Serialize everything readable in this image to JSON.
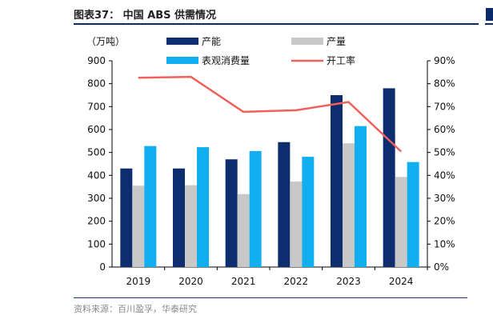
{
  "figure": {
    "title": "图表37： 中国 ABS 供需情况",
    "source": "资料来源：百川盈孚，华泰研究"
  },
  "chart_data": {
    "type": "bar",
    "categories": [
      "2019",
      "2020",
      "2021",
      "2022",
      "2023",
      "2024"
    ],
    "unit_label": "（万吨）",
    "y_left": {
      "min": 0,
      "max": 900,
      "step": 100,
      "ticks": [
        "0",
        "100",
        "200",
        "300",
        "400",
        "500",
        "600",
        "700",
        "800",
        "900"
      ]
    },
    "y_right": {
      "min": 0,
      "max": 90,
      "step": 10,
      "ticks": [
        "0%",
        "10%",
        "20%",
        "30%",
        "40%",
        "50%",
        "60%",
        "70%",
        "80%",
        "90%"
      ]
    },
    "series": [
      {
        "name": "产能",
        "type": "bar",
        "axis": "left",
        "color": "#0d2d6e",
        "values": [
          430,
          430,
          470,
          545,
          750,
          780
        ]
      },
      {
        "name": "产量",
        "type": "bar",
        "axis": "left",
        "color": "#c8c8c8",
        "values": [
          355,
          357,
          318,
          373,
          540,
          393
        ]
      },
      {
        "name": "表观消费量",
        "type": "bar",
        "axis": "left",
        "color": "#11aef0",
        "values": [
          528,
          523,
          506,
          481,
          615,
          458
        ]
      },
      {
        "name": "开工率",
        "type": "line",
        "axis": "right",
        "color": "#f0605d",
        "values": [
          82.6,
          83.0,
          67.7,
          68.4,
          72.0,
          50.4
        ]
      }
    ],
    "legend": {
      "placement": "top",
      "order": [
        "产能",
        "产量",
        "表观消费量",
        "开工率"
      ]
    },
    "grid": false
  }
}
